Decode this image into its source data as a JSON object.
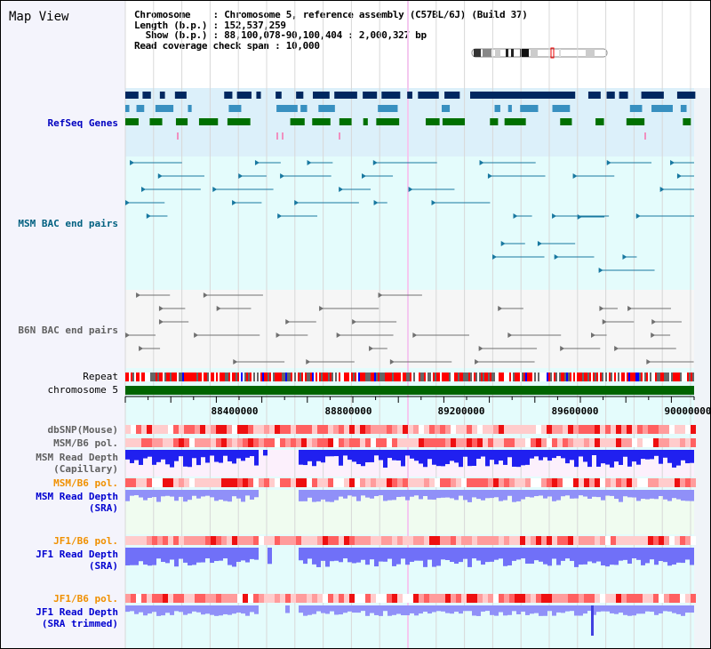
{
  "title": "Map View",
  "info": {
    "chromosome_label": "Chromosome    ",
    "chromosome": "Chromosome 5, reference assembly (C57BL/6J) (Build 37)",
    "length_label": "Length (b.p.)",
    "length": "152,537,259",
    "show_label": "  Show (b.p.)",
    "show": "88,100,078-90,100,404 : 2,000,327 bp",
    "span_label": "Read coverage check span",
    "span": "10,000"
  },
  "tracks": {
    "refseq": "RefSeq Genes",
    "msm_bac": "MSM BAC end pairs",
    "b6n_bac": "B6N BAC end pairs",
    "repeat": "Repeat",
    "chromosome": "chromosome 5",
    "dbsnp": "dbSNP(Mouse)",
    "msm_b6_pol": "MSM/B6 pol.",
    "msm_depth_cap": "MSM Read Depth\n(Capillary)",
    "msm_b6_pol2": "MSM/B6 pol.",
    "msm_depth_sra": "MSM Read Depth\n(SRA)",
    "jf1_b6_pol": "JF1/B6 pol.",
    "jf1_depth_sra": "JF1 Read Depth\n(SRA)",
    "jf1_b6_pol2": "JF1/B6 pol.",
    "jf1_depth_trim": "JF1 Read Depth\n(SRA trimmed)"
  },
  "ruler": {
    "labels": [
      "88400000",
      "88800000",
      "89200000",
      "89600000",
      "90000000"
    ],
    "range": [
      88100078,
      90100404
    ]
  },
  "colors": {
    "refseq_label": "#0000c0",
    "msm_bac_label": "#006080",
    "b6n_label": "#606060",
    "orange": "#f09000",
    "blue": "#0000d0",
    "gray": "#606060",
    "chrom": "#006400"
  }
}
